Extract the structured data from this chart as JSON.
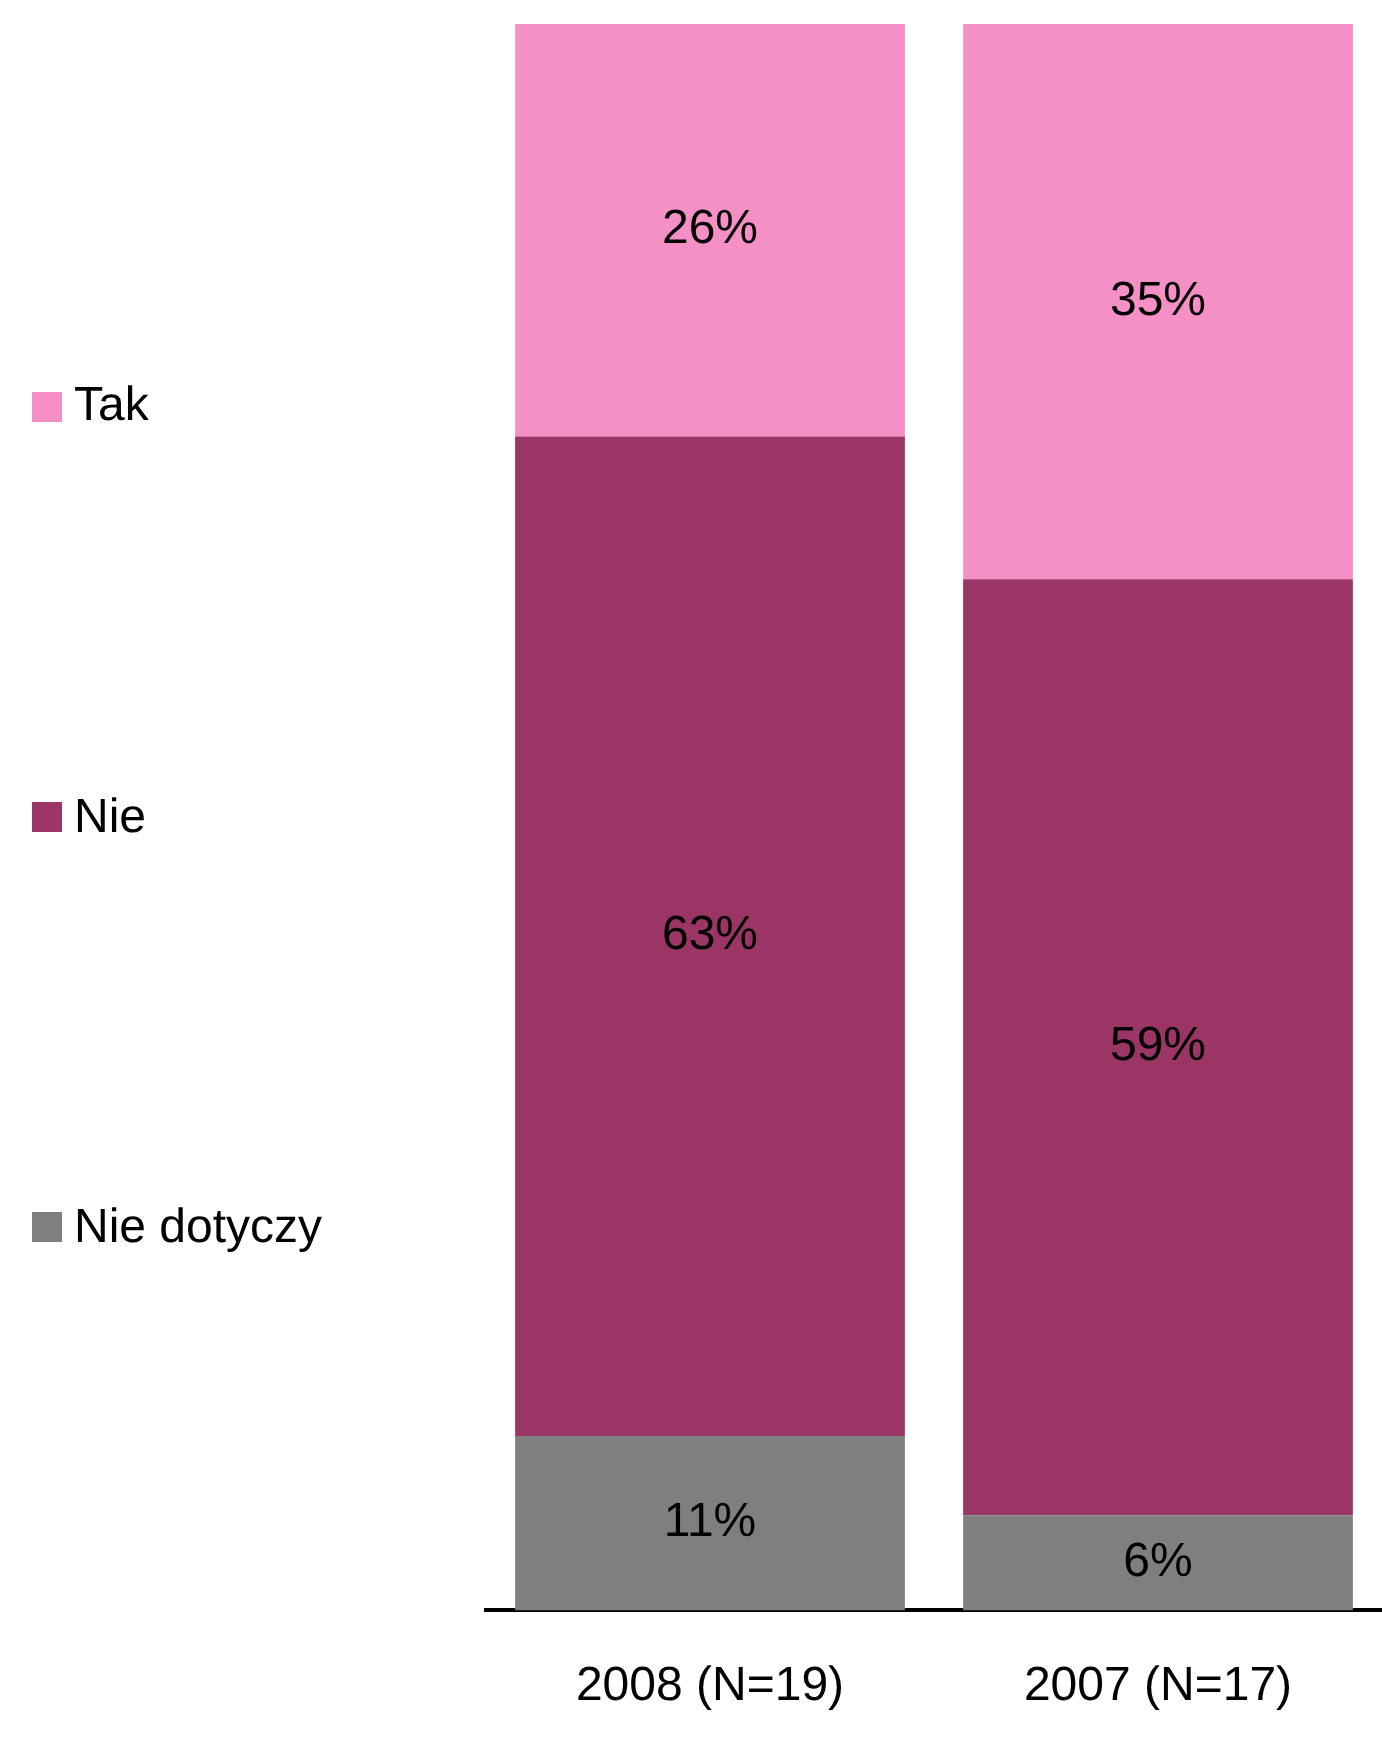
{
  "chart_data": {
    "type": "bar",
    "stacked": true,
    "categories": [
      "2008 (N=19)",
      "2007 (N=17)"
    ],
    "series": [
      {
        "name": "Nie dotyczy",
        "color": "#7f7f7f",
        "values": [
          11,
          6
        ],
        "value_labels": [
          "11%",
          "6%"
        ]
      },
      {
        "name": "Nie",
        "color": "#9b3565",
        "values": [
          63,
          59
        ],
        "value_labels": [
          "63%",
          "59%"
        ]
      },
      {
        "name": "Tak",
        "color": "#f590c6",
        "values": [
          26,
          35
        ],
        "value_labels": [
          "26%",
          "35%"
        ]
      }
    ],
    "tick_labels": "x",
    "legend": "left",
    "grid": false
  }
}
